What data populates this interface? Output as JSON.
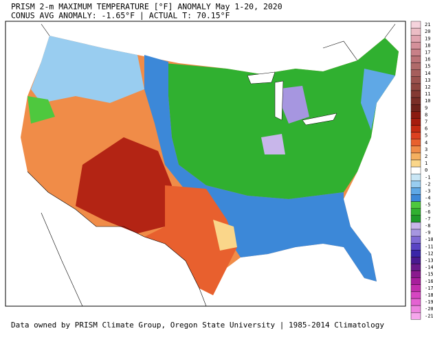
{
  "header": {
    "lines": [
      "PRISM 2-m MAXIMUM TEMPERATURE [°F] ANOMALY May 1-20, 2020",
      "CONUS AVG ANOMALY: -1.65°F | ACTUAL T: 70.15°F"
    ]
  },
  "legend": {
    "labels": [
      21,
      20,
      19,
      18,
      17,
      16,
      15,
      14,
      13,
      12,
      11,
      10,
      9,
      8,
      7,
      6,
      5,
      4,
      3,
      2,
      1,
      0,
      -1,
      -2,
      -3,
      -4,
      -5,
      -6,
      -7,
      -8,
      -9,
      -10,
      -11,
      -12,
      -13,
      -14,
      -15,
      -16,
      -17,
      -18,
      -19,
      -20,
      -21
    ],
    "colors": [
      "#f5d3dc",
      "#ecbdc5",
      "#e1a5b0",
      "#d4909a",
      "#c88088",
      "#bb7277",
      "#b06a6a",
      "#a65e5c",
      "#9b524e",
      "#8f4640",
      "#843a33",
      "#7a2e27",
      "#6e221b",
      "#8b1a10",
      "#a61c0e",
      "#c42a12",
      "#dc4020",
      "#e8602e",
      "#f08c48",
      "#f5b060",
      "#fad68a",
      "#ffffff",
      "#c9e6f5",
      "#99cdf0",
      "#5fa8e6",
      "#3c88d8",
      "#4ec83e",
      "#30b030",
      "#1f9a2a",
      "#c8b6ea",
      "#a696e0",
      "#7f6ad4",
      "#5a44c4",
      "#3a26a8",
      "#4a1a90",
      "#6a1a8a",
      "#8a1a8e",
      "#a81e9c",
      "#c22eae",
      "#d646c2",
      "#e462d2",
      "#ee84e0",
      "#f6a6ec"
    ]
  },
  "footer": "Data owned by PRISM Climate Group, Oregon State University | 1985-2014 Climatology"
}
